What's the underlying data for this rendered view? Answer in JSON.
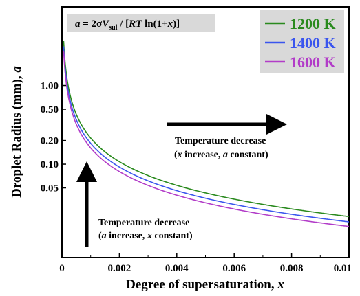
{
  "chart_data": {
    "type": "line",
    "xlabel": "Degree of supersaturation, ",
    "xlabel_var": "x",
    "ylabel": "Droplet Radius (mm), ",
    "ylabel_var": "a",
    "x_scale": "linear",
    "y_scale": "log",
    "xlim": [
      0,
      0.01
    ],
    "ylim": [
      0.0065,
      10
    ],
    "x_ticks": [
      0,
      0.002,
      0.004,
      0.006,
      0.008,
      0.01
    ],
    "x_tick_labels": [
      "0",
      "0.002",
      "0.004",
      "0.006",
      "0.008",
      "0.01"
    ],
    "y_ticks": [
      0.05,
      0.1,
      0.2,
      0.5,
      1.0
    ],
    "y_tick_labels": [
      "0.05",
      "0.10",
      "0.20",
      "0.50",
      "1.00"
    ],
    "grid": false,
    "legend_position": "top-right",
    "formula": {
      "lead": "a",
      "eq": " = 2σ",
      "V": "V",
      "sub": "sul",
      "mid": " / [",
      "RT": "RT",
      "tail_open": " ln(1+",
      "x": "x",
      "tail_close": ")]"
    },
    "series": [
      {
        "name": "1200 K",
        "color": "#2a8a1e",
        "coeff": 0.000215
      },
      {
        "name": "1400 K",
        "color": "#3a55ee",
        "coeff": 0.000184
      },
      {
        "name": "1600 K",
        "color": "#b23cc8",
        "coeff": 0.000161
      }
    ],
    "annotations": [
      {
        "line1": "Temperature decrease",
        "line2_pre": "(",
        "line2_var": "x",
        "line2_mid": " increase, ",
        "line2_var2": "a",
        "line2_post": " constant)"
      },
      {
        "line1": "Temperature decrease",
        "line2_pre": "(",
        "line2_var": "a",
        "line2_mid": " increase, ",
        "line2_var2": "x",
        "line2_post": " constant)"
      }
    ]
  }
}
